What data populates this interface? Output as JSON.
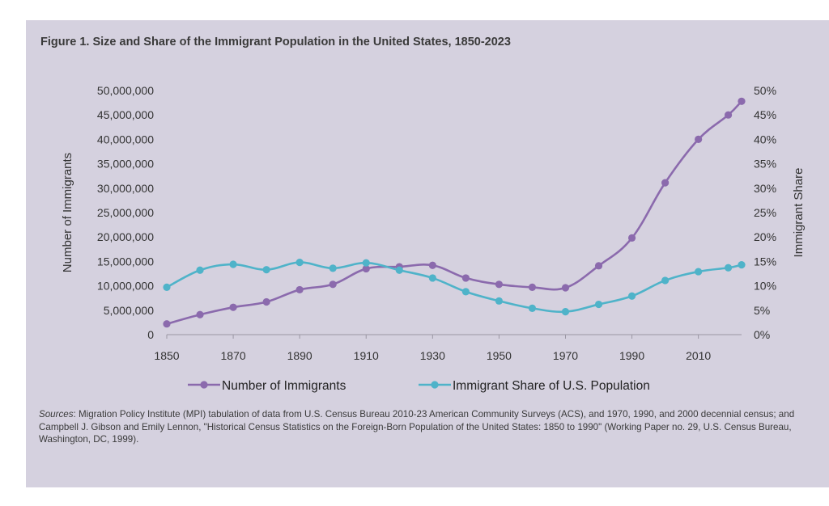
{
  "figure": {
    "title": "Figure 1. Size and Share of the Immigrant Population in the United States, 1850-2023",
    "sources_label": "Sources",
    "sources_text": ": Migration Policy Institute (MPI) tabulation of data from U.S. Census Bureau 2010-23 American Community Surveys (ACS), and 1970, 1990, and 2000 decennial census; and Campbell J. Gibson and Emily Lennon, \"Historical Census Statistics on the Foreign-Born Population of the United States: 1850 to 1990\" (Working Paper no. 29, U.S. Census Bureau, Washington, DC, 1999)."
  },
  "chart_data": {
    "type": "line",
    "title": "Figure 1. Size and Share of the Immigrant Population in the United States, 1850-2023",
    "xlabel": "",
    "ylabel": "Number of Immigrants",
    "y2label": "Immigrant Share",
    "xlim": [
      1850,
      2023
    ],
    "ylim": [
      0,
      50000000
    ],
    "y2lim": [
      0,
      50
    ],
    "x_ticks": [
      "1850",
      "1870",
      "1890",
      "1910",
      "1930",
      "1950",
      "1970",
      "1990",
      "2010"
    ],
    "y_ticks": [
      "0",
      "5,000,000",
      "10,000,000",
      "15,000,000",
      "20,000,000",
      "25,000,000",
      "30,000,000",
      "35,000,000",
      "40,000,000",
      "45,000,000",
      "50,000,000"
    ],
    "y2_ticks": [
      "0%",
      "5%",
      "10%",
      "15%",
      "20%",
      "25%",
      "30%",
      "35%",
      "40%",
      "45%",
      "50%"
    ],
    "grid": false,
    "legend_position": "bottom",
    "colors": {
      "immigrants": "#8b6aad",
      "share": "#4fb3c9"
    },
    "series": [
      {
        "name": "Number of Immigrants",
        "axis": "left",
        "x": [
          1850,
          1860,
          1870,
          1880,
          1890,
          1900,
          1910,
          1920,
          1930,
          1940,
          1950,
          1960,
          1970,
          1980,
          1990,
          2000,
          2010,
          2019,
          2023
        ],
        "values": [
          2200000,
          4100000,
          5600000,
          6700000,
          9200000,
          10300000,
          13500000,
          13900000,
          14200000,
          11600000,
          10300000,
          9700000,
          9600000,
          14100000,
          19800000,
          31100000,
          40000000,
          45000000,
          47800000
        ]
      },
      {
        "name": "Immigrant Share of U.S. Population",
        "axis": "right",
        "x": [
          1850,
          1860,
          1870,
          1880,
          1890,
          1900,
          1910,
          1920,
          1930,
          1940,
          1950,
          1960,
          1970,
          1980,
          1990,
          2000,
          2010,
          2019,
          2023
        ],
        "values": [
          9.7,
          13.2,
          14.4,
          13.3,
          14.8,
          13.6,
          14.7,
          13.2,
          11.6,
          8.8,
          6.9,
          5.4,
          4.7,
          6.2,
          7.9,
          11.1,
          12.9,
          13.7,
          14.3
        ]
      }
    ]
  }
}
